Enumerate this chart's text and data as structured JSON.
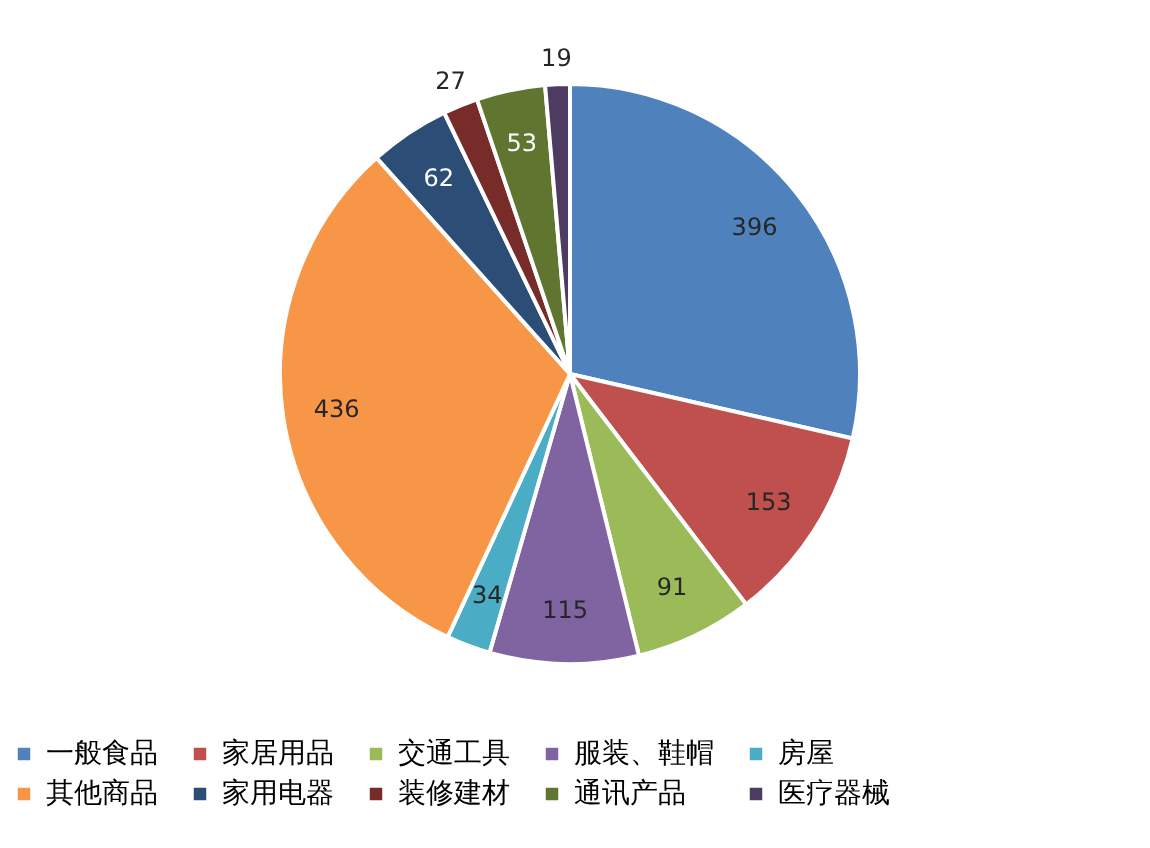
{
  "chart_data": {
    "type": "pie",
    "categories": [
      "一般食品",
      "家居用品",
      "交通工具",
      "服装、鞋帽",
      "房屋",
      "其他商品",
      "家用电器",
      "装修建材",
      "通讯产品",
      "医疗器械"
    ],
    "values": [
      396,
      153,
      91,
      115,
      34,
      436,
      62,
      27,
      53,
      19
    ],
    "colors": [
      "#4f81bd",
      "#c0504d",
      "#9bbb59",
      "#8064a2",
      "#4bacc6",
      "#f79646",
      "#2c4d75",
      "#772c2a",
      "#5f7530",
      "#4d3b62"
    ],
    "data_labels": true,
    "legend": "bottom"
  }
}
